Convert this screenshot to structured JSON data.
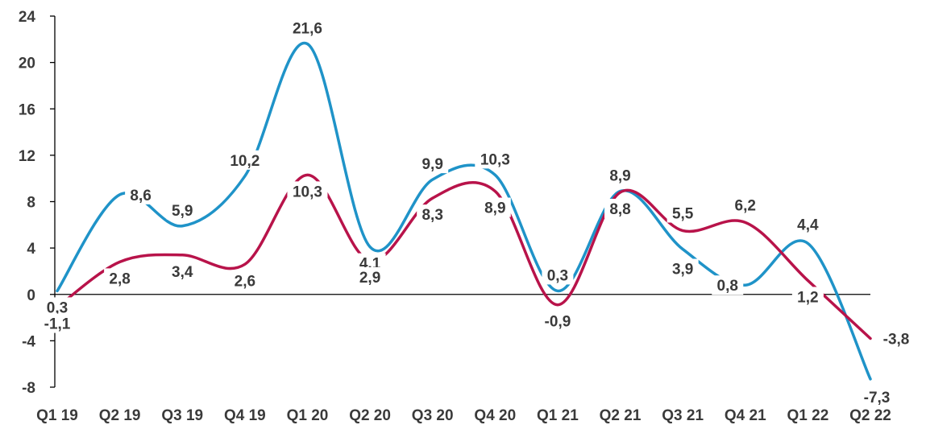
{
  "chart_data": {
    "type": "line",
    "title": "",
    "xlabel": "",
    "ylabel": "",
    "ylim": [
      -8,
      24
    ],
    "yticks": [
      -8,
      -4,
      0,
      4,
      8,
      12,
      16,
      20,
      24
    ],
    "categories": [
      "Q1 19",
      "Q2 19",
      "Q3 19",
      "Q4 19",
      "Q1 20",
      "Q2 20",
      "Q3 20",
      "Q4 20",
      "Q1 21",
      "Q2 21",
      "Q3 21",
      "Q4 21",
      "Q1 22",
      "Q2 22"
    ],
    "series": [
      {
        "color": "#1f93c8",
        "values": [
          0.3,
          8.6,
          5.9,
          10.2,
          21.6,
          4.1,
          9.9,
          10.3,
          0.3,
          8.9,
          3.9,
          0.8,
          4.4,
          -7.3
        ],
        "labels": [
          "0,3",
          "8,6",
          "5,9",
          "10,2",
          "21,6",
          "4,1",
          "9,9",
          "10,3",
          "0,3",
          "8,9",
          "3,9",
          "0,8",
          "4,4",
          "-7,3"
        ]
      },
      {
        "color": "#b8134a",
        "values": [
          -1.1,
          2.8,
          3.4,
          2.6,
          10.3,
          2.9,
          8.3,
          8.9,
          -0.9,
          8.8,
          5.5,
          6.2,
          1.2,
          -3.8
        ],
        "labels": [
          "-1,1",
          "2,8",
          "3,4",
          "2,6",
          "10,3",
          "2,9",
          "8,3",
          "8,9",
          "-0,9",
          "8,8",
          "5,5",
          "6,2",
          "1,2",
          "-3,8"
        ]
      }
    ],
    "grid": false,
    "legend": "none"
  }
}
